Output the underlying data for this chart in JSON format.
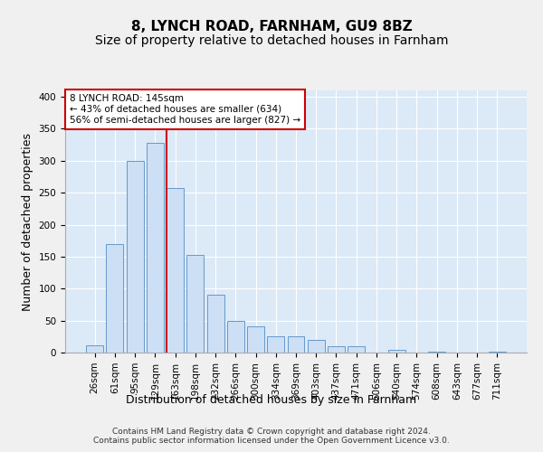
{
  "title1": "8, LYNCH ROAD, FARNHAM, GU9 8BZ",
  "title2": "Size of property relative to detached houses in Farnham",
  "xlabel": "Distribution of detached houses by size in Farnham",
  "ylabel": "Number of detached properties",
  "footnote": "Contains HM Land Registry data © Crown copyright and database right 2024.\nContains public sector information licensed under the Open Government Licence v3.0.",
  "bar_labels": [
    "26sqm",
    "61sqm",
    "95sqm",
    "129sqm",
    "163sqm",
    "198sqm",
    "232sqm",
    "266sqm",
    "300sqm",
    "334sqm",
    "369sqm",
    "403sqm",
    "437sqm",
    "471sqm",
    "506sqm",
    "540sqm",
    "574sqm",
    "608sqm",
    "643sqm",
    "677sqm",
    "711sqm"
  ],
  "bar_values": [
    12,
    170,
    300,
    328,
    258,
    152,
    91,
    50,
    41,
    26,
    26,
    20,
    10,
    10,
    0,
    4,
    0,
    1,
    0,
    0,
    1
  ],
  "bar_color": "#ccdff5",
  "bar_edge_color": "#6699cc",
  "property_line_label": "8 LYNCH ROAD: 145sqm",
  "annotation_line1": "← 43% of detached houses are smaller (634)",
  "annotation_line2": "56% of semi-detached houses are larger (827) →",
  "line_color": "#cc0000",
  "annotation_box_color": "#ffffff",
  "annotation_box_edge": "#cc0000",
  "ylim": [
    0,
    410
  ],
  "plot_bg_color": "#dce9f7",
  "fig_bg_color": "#f0f0f0",
  "title1_fontsize": 11,
  "title2_fontsize": 10,
  "tick_fontsize": 7.5,
  "axis_label_fontsize": 9,
  "footnote_fontsize": 6.5
}
